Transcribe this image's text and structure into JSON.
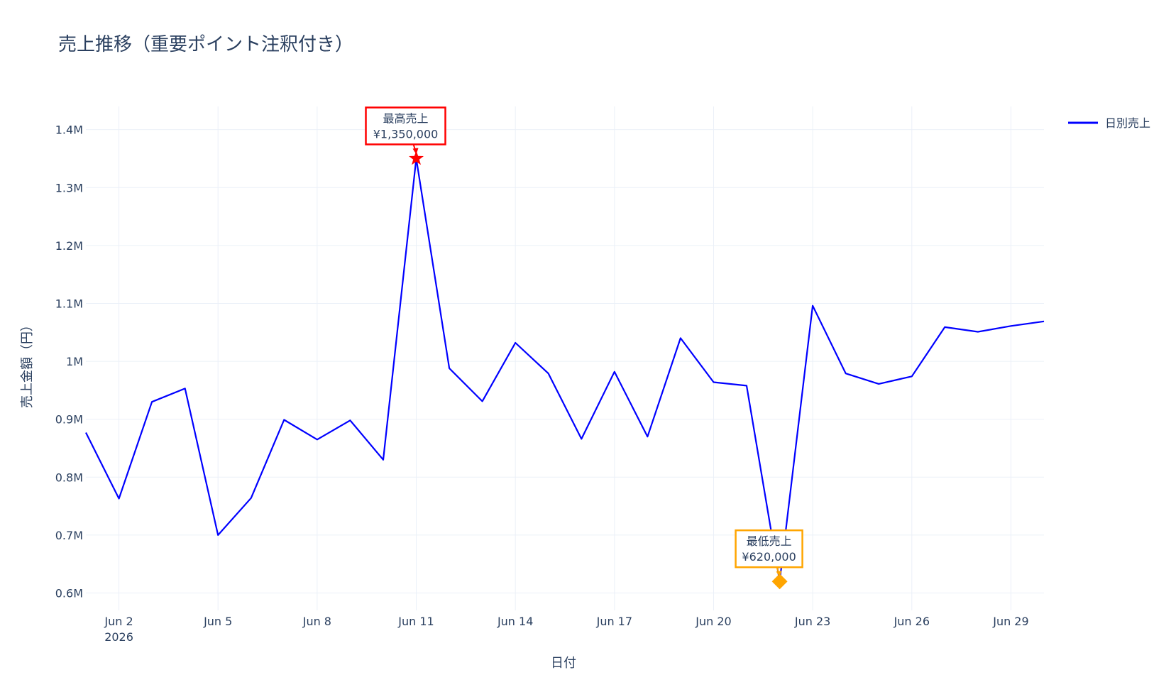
{
  "chart_data": {
    "type": "line",
    "title": "売上推移（重要ポイント注釈付き）",
    "xlabel": "日付",
    "ylabel": "売上金額（円）",
    "x_range": [
      "2026-06-01",
      "2026-06-30"
    ],
    "ylim": [
      570000,
      1440000
    ],
    "y_ticks": [
      600000,
      700000,
      800000,
      900000,
      1000000,
      1100000,
      1200000,
      1300000,
      1400000
    ],
    "y_tick_labels": [
      "0.6M",
      "0.7M",
      "0.8M",
      "0.9M",
      "1M",
      "1.1M",
      "1.2M",
      "1.3M",
      "1.4M"
    ],
    "x_ticks": [
      "2026-06-02",
      "2026-06-05",
      "2026-06-08",
      "2026-06-11",
      "2026-06-14",
      "2026-06-17",
      "2026-06-20",
      "2026-06-23",
      "2026-06-26",
      "2026-06-29"
    ],
    "x_tick_labels": [
      "Jun 2",
      "Jun 5",
      "Jun 8",
      "Jun 11",
      "Jun 14",
      "Jun 17",
      "Jun 20",
      "Jun 23",
      "Jun 26",
      "Jun 29"
    ],
    "x_tick_sublabel": "2026",
    "grid": true,
    "legend_position": "top-right",
    "series": [
      {
        "name": "日別売上",
        "color": "#0000ff",
        "x": [
          "2026-06-01",
          "2026-06-02",
          "2026-06-03",
          "2026-06-04",
          "2026-06-05",
          "2026-06-06",
          "2026-06-07",
          "2026-06-08",
          "2026-06-09",
          "2026-06-10",
          "2026-06-11",
          "2026-06-12",
          "2026-06-13",
          "2026-06-14",
          "2026-06-15",
          "2026-06-16",
          "2026-06-17",
          "2026-06-18",
          "2026-06-19",
          "2026-06-20",
          "2026-06-21",
          "2026-06-22",
          "2026-06-23",
          "2026-06-24",
          "2026-06-25",
          "2026-06-26",
          "2026-06-27",
          "2026-06-28",
          "2026-06-29",
          "2026-06-30"
        ],
        "values": [
          877000,
          763000,
          930000,
          953000,
          700000,
          764000,
          899000,
          865000,
          898000,
          830000,
          1350000,
          988000,
          931000,
          1032000,
          979000,
          866000,
          982000,
          870000,
          1040000,
          964000,
          958000,
          620000,
          1096000,
          979000,
          961000,
          974000,
          1059000,
          1051000,
          1061000,
          1069000
        ]
      }
    ],
    "annotations": [
      {
        "x": "2026-06-11",
        "y": 1350000,
        "line1": "最高売上",
        "line2": "¥1,350,000",
        "color": "#ff0000",
        "marker": "star"
      },
      {
        "x": "2026-06-22",
        "y": 620000,
        "line1": "最低売上",
        "line2": "¥620,000",
        "color": "#ffa500",
        "marker": "diamond"
      }
    ]
  }
}
